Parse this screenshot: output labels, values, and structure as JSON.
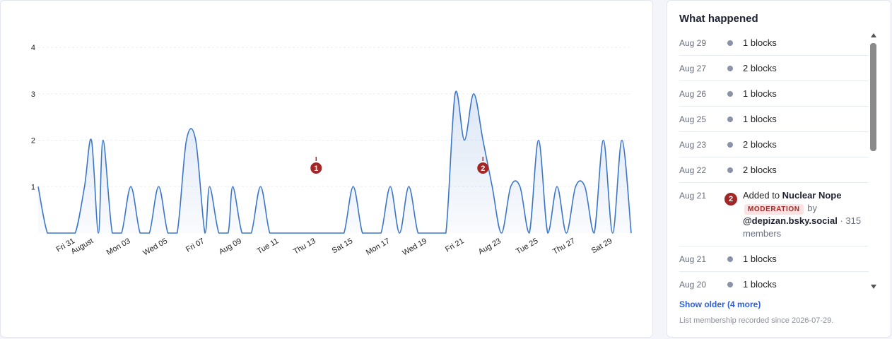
{
  "chart_data": {
    "type": "area",
    "title": "",
    "xlabel": "",
    "ylabel": "",
    "ylim": [
      0,
      4
    ],
    "yticks": [
      1,
      2,
      3,
      4
    ],
    "grid": true,
    "x_start": "2026-07-29",
    "x_end": "2026-08-30",
    "x_tick_labels": [
      "Fri 31",
      "August",
      "Mon 03",
      "Wed 05",
      "Fri 07",
      "Aug 09",
      "Tue 11",
      "Thu 13",
      "Sat 15",
      "Mon 17",
      "Wed 19",
      "Fri 21",
      "Aug 23",
      "Tue 25",
      "Thu 27",
      "Sat 29"
    ],
    "x_tick_dates": [
      "2026-07-31",
      "2026-08-01",
      "2026-08-03",
      "2026-08-05",
      "2026-08-07",
      "2026-08-09",
      "2026-08-11",
      "2026-08-13",
      "2026-08-15",
      "2026-08-17",
      "2026-08-19",
      "2026-08-21",
      "2026-08-23",
      "2026-08-25",
      "2026-08-27",
      "2026-08-29"
    ],
    "series": [
      {
        "name": "",
        "color": "#3b76c9",
        "points": [
          [
            "2026-07-29T00:00",
            1
          ],
          [
            "2026-07-29T12:00",
            0
          ],
          [
            "2026-07-30T00:00",
            0
          ],
          [
            "2026-07-30T12:00",
            0
          ],
          [
            "2026-07-31T00:00",
            0
          ],
          [
            "2026-07-31T12:00",
            1
          ],
          [
            "2026-07-31T21:00",
            2
          ],
          [
            "2026-08-01T06:00",
            0
          ],
          [
            "2026-08-01T12:00",
            2
          ],
          [
            "2026-08-02T00:00",
            0
          ],
          [
            "2026-08-02T12:00",
            0
          ],
          [
            "2026-08-03T00:00",
            1
          ],
          [
            "2026-08-03T12:00",
            0
          ],
          [
            "2026-08-04T00:00",
            0
          ],
          [
            "2026-08-04T12:00",
            1
          ],
          [
            "2026-08-05T00:00",
            0
          ],
          [
            "2026-08-05T12:00",
            0
          ],
          [
            "2026-08-06T00:00",
            2
          ],
          [
            "2026-08-06T12:00",
            2
          ],
          [
            "2026-08-07T00:00",
            0
          ],
          [
            "2026-08-07T06:00",
            1
          ],
          [
            "2026-08-07T18:00",
            0
          ],
          [
            "2026-08-08T06:00",
            0
          ],
          [
            "2026-08-08T12:00",
            1
          ],
          [
            "2026-08-09T00:00",
            0
          ],
          [
            "2026-08-09T12:00",
            0
          ],
          [
            "2026-08-10T00:00",
            1
          ],
          [
            "2026-08-10T12:00",
            0
          ],
          [
            "2026-08-11T00:00",
            0
          ],
          [
            "2026-08-11T12:00",
            0
          ],
          [
            "2026-08-12T00:00",
            0
          ],
          [
            "2026-08-12T12:00",
            0
          ],
          [
            "2026-08-13T00:00",
            0
          ],
          [
            "2026-08-13T12:00",
            0
          ],
          [
            "2026-08-14T00:00",
            0
          ],
          [
            "2026-08-14T12:00",
            0
          ],
          [
            "2026-08-15T00:00",
            1
          ],
          [
            "2026-08-15T12:00",
            0
          ],
          [
            "2026-08-16T00:00",
            0
          ],
          [
            "2026-08-16T12:00",
            0
          ],
          [
            "2026-08-17T00:00",
            1
          ],
          [
            "2026-08-17T12:00",
            0
          ],
          [
            "2026-08-18T00:00",
            1
          ],
          [
            "2026-08-18T12:00",
            0
          ],
          [
            "2026-08-19T00:00",
            0
          ],
          [
            "2026-08-19T12:00",
            0
          ],
          [
            "2026-08-20T00:00",
            0
          ],
          [
            "2026-08-20T12:00",
            3
          ],
          [
            "2026-08-21T00:00",
            2
          ],
          [
            "2026-08-21T12:00",
            3
          ],
          [
            "2026-08-22T00:00",
            2
          ],
          [
            "2026-08-22T12:00",
            1
          ],
          [
            "2026-08-23T00:00",
            0
          ],
          [
            "2026-08-23T12:00",
            1
          ],
          [
            "2026-08-24T00:00",
            1
          ],
          [
            "2026-08-24T12:00",
            0
          ],
          [
            "2026-08-25T00:00",
            2
          ],
          [
            "2026-08-25T12:00",
            0
          ],
          [
            "2026-08-26T00:00",
            1
          ],
          [
            "2026-08-26T12:00",
            0
          ],
          [
            "2026-08-27T00:00",
            1
          ],
          [
            "2026-08-27T12:00",
            1
          ],
          [
            "2026-08-28T00:00",
            0
          ],
          [
            "2026-08-28T12:00",
            2
          ],
          [
            "2026-08-29T00:00",
            0
          ],
          [
            "2026-08-29T12:00",
            2
          ],
          [
            "2026-08-30T00:00",
            0
          ]
        ]
      }
    ],
    "markers": [
      {
        "label": "1",
        "date": "2026-08-13T00:00",
        "value": 1.4,
        "color": "#a22828"
      },
      {
        "label": "2",
        "date": "2026-08-22T00:00",
        "value": 1.4,
        "color": "#a22828"
      }
    ]
  },
  "panel": {
    "title": "What happened",
    "events": [
      {
        "date": "Aug 29",
        "text": "1 blocks"
      },
      {
        "date": "Aug 27",
        "text": "2 blocks"
      },
      {
        "date": "Aug 26",
        "text": "1 blocks"
      },
      {
        "date": "Aug 25",
        "text": "1 blocks"
      },
      {
        "date": "Aug 23",
        "text": "2 blocks"
      },
      {
        "date": "Aug 22",
        "text": "2 blocks"
      }
    ],
    "highlight": {
      "date": "Aug 21",
      "badge": "2",
      "prefix": "Added to",
      "list_name": "Nuclear Nope",
      "tag": "MODERATION",
      "by": "by",
      "handle": "@depizan.bsky.social",
      "members": "· 315 members"
    },
    "events_after": [
      {
        "date": "Aug 21",
        "text": "1 blocks"
      },
      {
        "date": "Aug 20",
        "text": "1 blocks"
      }
    ],
    "show_older": "Show older (4 more)",
    "footnote": "List membership recorded since 2026-07-29."
  }
}
